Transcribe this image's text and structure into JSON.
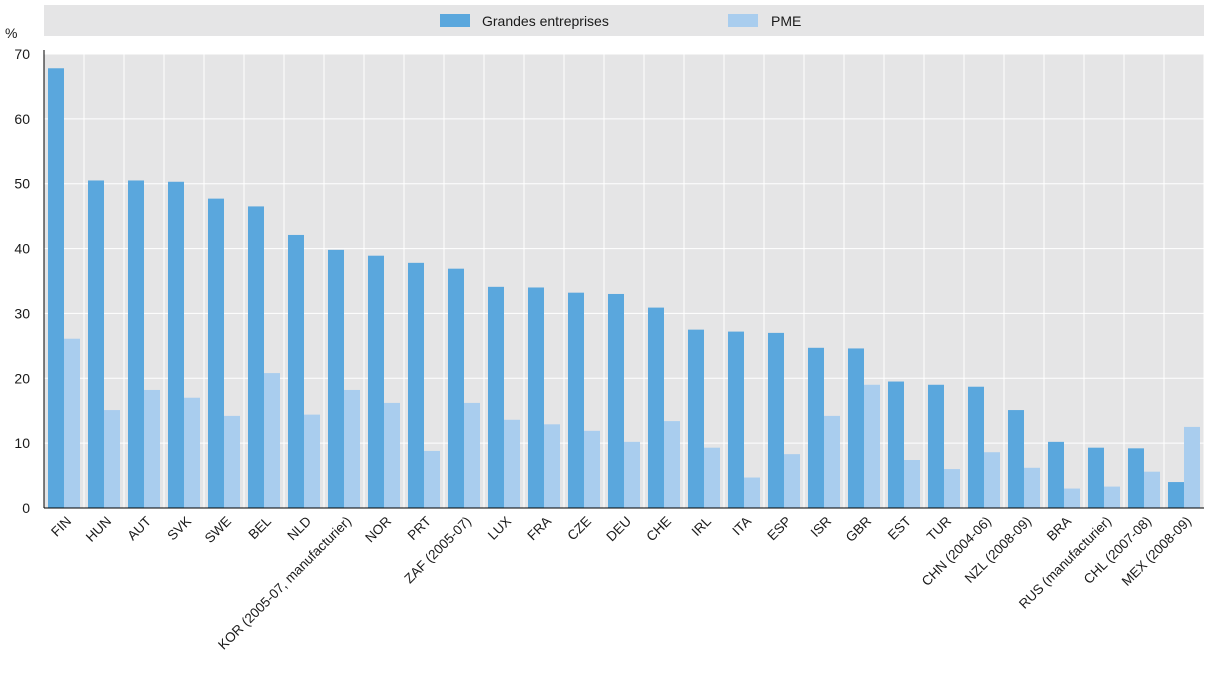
{
  "chart_data": {
    "type": "bar",
    "ylabel": "%",
    "ylim": [
      0,
      70
    ],
    "yticks": [
      0,
      10,
      20,
      30,
      40,
      50,
      60,
      70
    ],
    "grid": true,
    "legend_position": "top",
    "categories": [
      "FIN",
      "HUN",
      "AUT",
      "SVK",
      "SWE",
      "BEL",
      "NLD",
      "KOR (2005-07, manufacturier)",
      "NOR",
      "PRT",
      "ZAF (2005-07)",
      "LUX",
      "FRA",
      "CZE",
      "DEU",
      "CHE",
      "IRL",
      "ITA",
      "ESP",
      "ISR",
      "GBR",
      "EST",
      "TUR",
      "CHN (2004-06)",
      "NZL (2008-09)",
      "BRA",
      "RUS (manufacturier)",
      "CHL (2007-08)",
      "MEX (2008-09)"
    ],
    "series": [
      {
        "name": "Grandes entreprises",
        "color": "#5aa7dd",
        "values": [
          67.8,
          50.5,
          50.5,
          50.3,
          47.7,
          46.5,
          42.1,
          39.8,
          38.9,
          37.8,
          36.9,
          34.1,
          34.0,
          33.2,
          33.0,
          30.9,
          27.5,
          27.2,
          27.0,
          24.7,
          24.6,
          19.5,
          19.0,
          18.7,
          15.1,
          10.2,
          9.3,
          9.2,
          4.0
        ]
      },
      {
        "name": "PME",
        "color": "#a9cdee",
        "values": [
          26.1,
          15.1,
          18.2,
          17.0,
          14.2,
          20.8,
          14.4,
          18.2,
          16.2,
          8.8,
          16.2,
          13.6,
          12.9,
          11.9,
          10.2,
          13.4,
          9.3,
          4.7,
          8.3,
          14.2,
          19.0,
          7.4,
          6.0,
          8.6,
          6.2,
          3.0,
          3.3,
          5.6,
          12.5
        ]
      }
    ]
  },
  "colors": {
    "plot_background": "#e5e5e6",
    "gridline": "#ffffff",
    "axis": "#000000"
  }
}
